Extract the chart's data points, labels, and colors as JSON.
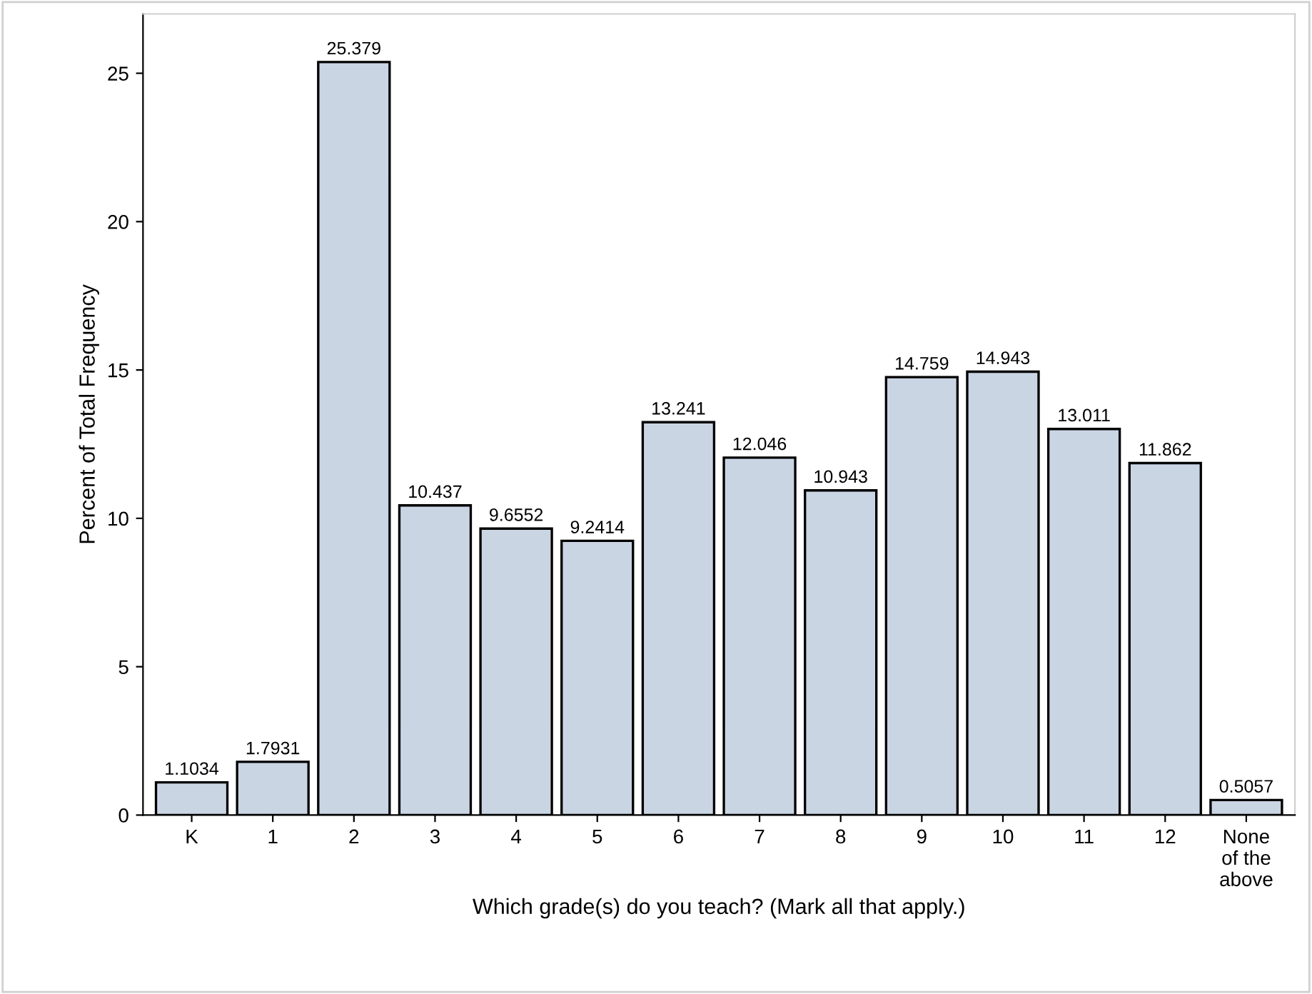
{
  "chart_data": {
    "type": "bar",
    "xlabel": "Which grade(s) do you teach? (Mark all that apply.)",
    "ylabel": "Percent of Total Frequency",
    "categories": [
      "K",
      "1",
      "2",
      "3",
      "4",
      "5",
      "6",
      "7",
      "8",
      "9",
      "10",
      "11",
      "12",
      "None of the above"
    ],
    "values": [
      1.1034,
      1.7931,
      25.379,
      10.437,
      9.6552,
      9.2414,
      13.241,
      12.046,
      10.943,
      14.759,
      14.943,
      13.011,
      11.862,
      0.5057
    ],
    "color": "#cad5e4",
    "ylim": [
      0,
      27
    ],
    "yticks": [
      0,
      5,
      10,
      15,
      20,
      25
    ],
    "data_labels": true,
    "grid": false
  }
}
